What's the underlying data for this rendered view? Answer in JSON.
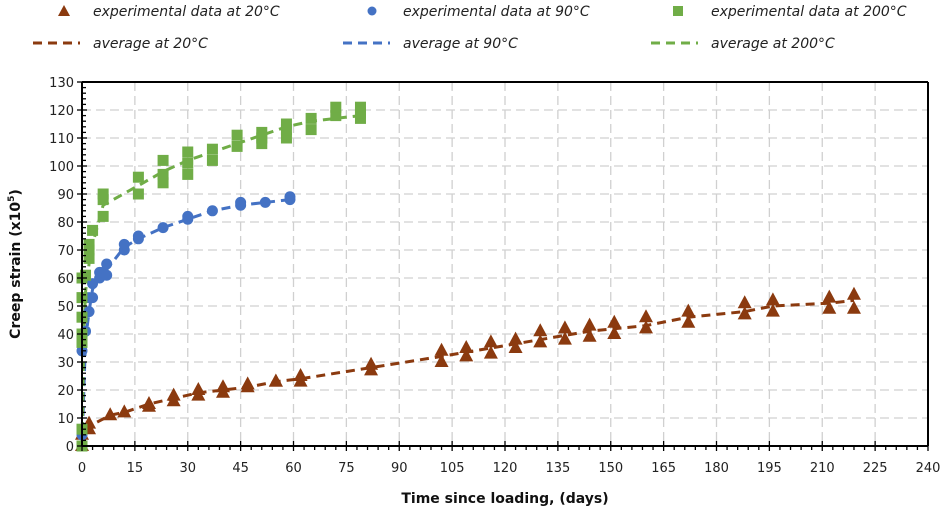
{
  "chart_data": {
    "type": "scatter",
    "title": "",
    "xlabel": "Time since loading, (days)",
    "ylabel": "Creep strain (x10",
    "ylabel_sup": "5",
    "ylabel_close": ")",
    "xlim": [
      0,
      240
    ],
    "ylim": [
      0,
      130
    ],
    "xticks": [
      0,
      15,
      30,
      45,
      60,
      75,
      90,
      105,
      120,
      135,
      150,
      165,
      180,
      195,
      210,
      225,
      240
    ],
    "yticks": [
      0,
      10,
      20,
      30,
      40,
      50,
      60,
      70,
      80,
      90,
      100,
      110,
      120,
      130
    ],
    "grid": true,
    "legend_position": "top",
    "series": [
      {
        "name": "experimental data at 20°C",
        "kind": "points",
        "marker": "triangle",
        "color": "#8B3A0F",
        "x": [
          0,
          0,
          2,
          2,
          8,
          12,
          19,
          19,
          26,
          26,
          33,
          33,
          40,
          40,
          47,
          47,
          55,
          55,
          62,
          62,
          82,
          82,
          102,
          102,
          109,
          109,
          116,
          116,
          123,
          123,
          130,
          130,
          137,
          137,
          144,
          144,
          151,
          151,
          160,
          160,
          172,
          172,
          188,
          188,
          196,
          196,
          212,
          212,
          219,
          219
        ],
        "y": [
          0,
          4,
          6,
          8,
          11,
          12,
          14,
          15,
          16,
          18,
          18,
          20,
          19,
          21,
          21,
          22,
          23,
          23,
          23,
          25,
          27,
          29,
          30,
          34,
          32,
          35,
          33,
          37,
          35,
          38,
          37,
          41,
          38,
          42,
          39,
          43,
          40,
          44,
          42,
          46,
          44,
          48,
          47,
          51,
          48,
          52,
          49,
          53,
          49,
          54
        ]
      },
      {
        "name": "experimental data at 90°C",
        "kind": "points",
        "marker": "circle",
        "color": "#4472C4",
        "x": [
          0,
          0,
          0,
          1,
          2,
          2,
          3,
          3,
          5,
          5,
          6,
          7,
          7,
          12,
          12,
          16,
          16,
          23,
          30,
          30,
          37,
          45,
          45,
          52,
          59,
          59
        ],
        "y": [
          0,
          4,
          34,
          41,
          48,
          53,
          53,
          58,
          60,
          62,
          62,
          61,
          65,
          70,
          72,
          74,
          75,
          78,
          81,
          82,
          84,
          86,
          87,
          87,
          88,
          89
        ]
      },
      {
        "name": "experimental data at 200°C",
        "kind": "points",
        "marker": "square",
        "color": "#70AD47",
        "x": [
          0,
          0,
          0,
          0,
          0,
          0,
          0,
          1,
          2,
          2,
          2,
          3,
          6,
          6,
          6,
          16,
          16,
          23,
          23,
          23,
          30,
          30,
          30,
          37,
          37,
          44,
          44,
          51,
          51,
          51,
          58,
          58,
          58,
          65,
          65,
          72,
          72,
          79,
          79,
          79
        ],
        "y": [
          0,
          6,
          37,
          40,
          46,
          53,
          60,
          61,
          67,
          70,
          72,
          77,
          82,
          88,
          90,
          90,
          96,
          94,
          97,
          102,
          97,
          101,
          105,
          102,
          106,
          107,
          111,
          108,
          110,
          112,
          110,
          113,
          115,
          113,
          117,
          118,
          121,
          117,
          119,
          121
        ]
      },
      {
        "name": "average at 20°C",
        "kind": "line",
        "dash": true,
        "color": "#8B3A0F",
        "x": [
          0,
          2,
          8,
          12,
          19,
          26,
          33,
          40,
          47,
          55,
          62,
          82,
          102,
          116,
          130,
          144,
          160,
          172,
          188,
          196,
          212,
          219
        ],
        "y": [
          0,
          7,
          11,
          12,
          15,
          17,
          19,
          20,
          21,
          23,
          24,
          28,
          32,
          35,
          38,
          41,
          43,
          46,
          48,
          50,
          51,
          52
        ]
      },
      {
        "name": "average at 90°C",
        "kind": "line",
        "dash": true,
        "color": "#4472C4",
        "x": [
          0,
          1,
          2,
          3,
          5,
          7,
          12,
          16,
          23,
          30,
          37,
          45,
          52,
          59
        ],
        "y": [
          0,
          38,
          48,
          56,
          60,
          63,
          71,
          74,
          78,
          81,
          84,
          86,
          87,
          88
        ]
      },
      {
        "name": "average at 200°C",
        "kind": "line",
        "dash": true,
        "color": "#70AD47",
        "x": [
          0,
          0.5,
          1,
          2,
          3,
          6,
          16,
          23,
          30,
          37,
          44,
          51,
          58,
          65,
          72,
          79
        ],
        "y": [
          0,
          40,
          55,
          65,
          72,
          86,
          93,
          98,
          102,
          105,
          108,
          111,
          114,
          116,
          117,
          118
        ]
      }
    ]
  },
  "legend": [
    {
      "label": "experimental data at 20°C",
      "symbol": "triangle",
      "color": "#8B3A0F"
    },
    {
      "label": "experimental data at 90°C",
      "symbol": "circle",
      "color": "#4472C4"
    },
    {
      "label": "experimental data at 200°C",
      "symbol": "square",
      "color": "#70AD47"
    },
    {
      "label": "average at 20°C",
      "symbol": "dash",
      "color": "#8B3A0F"
    },
    {
      "label": "average at 90°C",
      "symbol": "dash",
      "color": "#4472C4"
    },
    {
      "label": "average at 200°C",
      "symbol": "dash",
      "color": "#70AD47"
    }
  ]
}
